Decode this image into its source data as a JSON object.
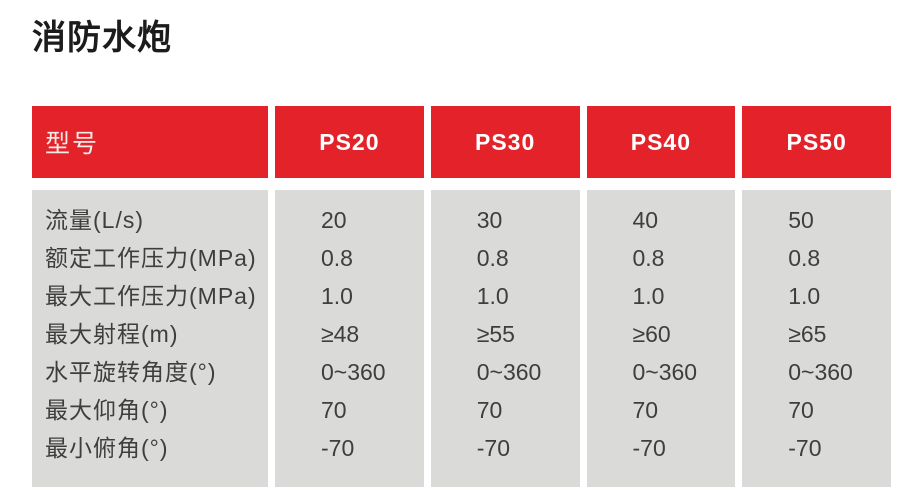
{
  "page": {
    "title": "消防水炮"
  },
  "table": {
    "header": {
      "label": "型号",
      "models": [
        "PS20",
        "PS30",
        "PS40",
        "PS50"
      ]
    },
    "rows": [
      {
        "label": "流量(L/s)",
        "values": [
          "20",
          "30",
          "40",
          "50"
        ]
      },
      {
        "label": "额定工作压力(MPa)",
        "values": [
          "0.8",
          "0.8",
          "0.8",
          "0.8"
        ]
      },
      {
        "label": "最大工作压力(MPa)",
        "values": [
          "1.0",
          "1.0",
          "1.0",
          "1.0"
        ]
      },
      {
        "label": "最大射程(m)",
        "values": [
          "≥48",
          "≥55",
          "≥60",
          "≥65"
        ]
      },
      {
        "label": "水平旋转角度(°)",
        "values": [
          "0~360",
          "0~360",
          "0~360",
          "0~360"
        ]
      },
      {
        "label": "最大仰角(°)",
        "values": [
          "70",
          "70",
          "70",
          "70"
        ]
      },
      {
        "label": "最小俯角(°)",
        "values": [
          "-70",
          "-70",
          "-70",
          "-70"
        ]
      }
    ]
  },
  "colors": {
    "page_bg": "#ffffff",
    "title_text": "#1c1c1c",
    "header_bg": "#e3222a",
    "header_label_text": "#f0ece9",
    "header_model_text": "#ffffff",
    "body_bg": "#dadbd8",
    "body_text": "#3e3e3e"
  }
}
